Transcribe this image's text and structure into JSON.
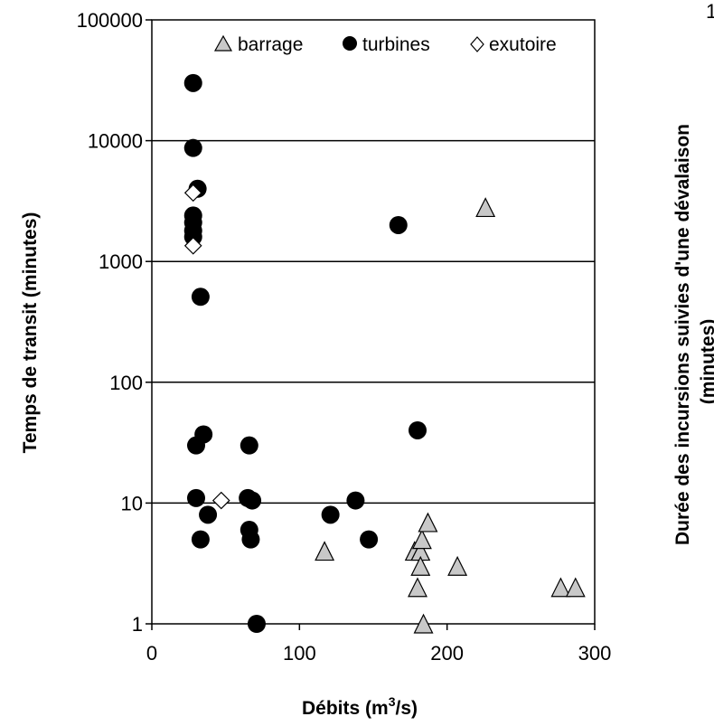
{
  "chart_data": [
    {
      "type": "scatter",
      "xlabel_main": "Débits (m",
      "xlabel_sup": "3",
      "xlabel_end": "/s)",
      "ylabel": "Temps de transit (minutes)",
      "xlim": [
        0,
        300
      ],
      "ylim": [
        1,
        100000
      ],
      "yscale": "log",
      "grid": "horizontal",
      "legend_position": "top",
      "x_ticks": [
        "0",
        "100",
        "200",
        "300"
      ],
      "x_tick_values": [
        0,
        100,
        200,
        300
      ],
      "y_ticks": [
        "1",
        "10",
        "100",
        "1000",
        "10000",
        "100000"
      ],
      "y_tick_values": [
        1,
        10,
        100,
        1000,
        10000,
        100000
      ],
      "series": [
        {
          "name": "barrage",
          "marker": "triangle",
          "color": "#c8c8c8",
          "points": [
            {
              "x": 117,
              "y": 4
            },
            {
              "x": 178,
              "y": 4
            },
            {
              "x": 182,
              "y": 4
            },
            {
              "x": 183,
              "y": 5
            },
            {
              "x": 187,
              "y": 6.9
            },
            {
              "x": 182,
              "y": 3
            },
            {
              "x": 180,
              "y": 2
            },
            {
              "x": 184,
              "y": 1
            },
            {
              "x": 207,
              "y": 3
            },
            {
              "x": 226,
              "y": 2800
            },
            {
              "x": 277,
              "y": 2
            },
            {
              "x": 287,
              "y": 2
            }
          ]
        },
        {
          "name": "turbines",
          "marker": "circle",
          "color": "#000000",
          "points": [
            {
              "x": 28,
              "y": 30000
            },
            {
              "x": 28,
              "y": 8700
            },
            {
              "x": 31,
              "y": 4000
            },
            {
              "x": 28,
              "y": 2400
            },
            {
              "x": 28,
              "y": 2100
            },
            {
              "x": 28,
              "y": 1800
            },
            {
              "x": 28,
              "y": 1600
            },
            {
              "x": 33,
              "y": 510
            },
            {
              "x": 30,
              "y": 30
            },
            {
              "x": 35,
              "y": 37
            },
            {
              "x": 30,
              "y": 11
            },
            {
              "x": 38,
              "y": 8
            },
            {
              "x": 33,
              "y": 5
            },
            {
              "x": 66,
              "y": 30
            },
            {
              "x": 65,
              "y": 11
            },
            {
              "x": 68,
              "y": 10.5
            },
            {
              "x": 66,
              "y": 6
            },
            {
              "x": 67,
              "y": 5
            },
            {
              "x": 71,
              "y": 1
            },
            {
              "x": 121,
              "y": 8
            },
            {
              "x": 138,
              "y": 10.5
            },
            {
              "x": 147,
              "y": 5
            },
            {
              "x": 167,
              "y": 2000
            },
            {
              "x": 180,
              "y": 40
            }
          ]
        },
        {
          "name": "exutoire",
          "marker": "diamond",
          "color": "#ffffff",
          "points": [
            {
              "x": 28,
              "y": 3700
            },
            {
              "x": 28,
              "y": 1350
            },
            {
              "x": 47,
              "y": 10.5
            }
          ]
        }
      ]
    },
    {
      "type": "scatter",
      "ylabel_line1": "Durée des incursions suivies d'une dévalaison",
      "ylabel_line2": "(minutes)",
      "y_tick_top": "1"
    }
  ]
}
